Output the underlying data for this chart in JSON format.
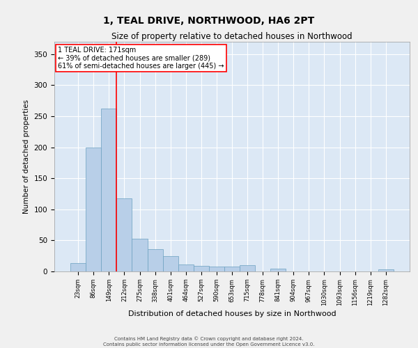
{
  "title": "1, TEAL DRIVE, NORTHWOOD, HA6 2PT",
  "subtitle": "Size of property relative to detached houses in Northwood",
  "xlabel": "Distribution of detached houses by size in Northwood",
  "ylabel": "Number of detached properties",
  "bar_color": "#b8cfe8",
  "bar_edge_color": "#6a9fc0",
  "background_color": "#dce8f5",
  "grid_color": "#ffffff",
  "categories": [
    "23sqm",
    "86sqm",
    "149sqm",
    "212sqm",
    "275sqm",
    "338sqm",
    "401sqm",
    "464sqm",
    "527sqm",
    "590sqm",
    "653sqm",
    "715sqm",
    "778sqm",
    "841sqm",
    "904sqm",
    "967sqm",
    "1030sqm",
    "1093sqm",
    "1156sqm",
    "1219sqm",
    "1282sqm"
  ],
  "values": [
    13,
    200,
    262,
    118,
    53,
    36,
    25,
    11,
    9,
    8,
    8,
    10,
    0,
    5,
    0,
    0,
    0,
    0,
    0,
    0,
    3
  ],
  "property_label": "1 TEAL DRIVE: 171sqm",
  "annotation_line1": "← 39% of detached houses are smaller (289)",
  "annotation_line2": "61% of semi-detached houses are larger (445) →",
  "vline_x_index": 2.5,
  "ylim": [
    0,
    370
  ],
  "yticks": [
    0,
    50,
    100,
    150,
    200,
    250,
    300,
    350
  ],
  "footer_line1": "Contains HM Land Registry data © Crown copyright and database right 2024.",
  "footer_line2": "Contains public sector information licensed under the Open Government Licence v3.0."
}
